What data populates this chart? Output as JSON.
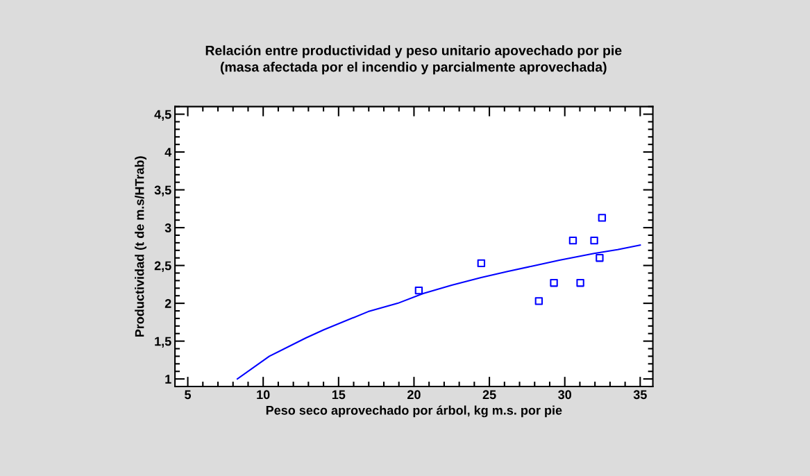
{
  "chart_data": {
    "type": "scatter",
    "title": "Relación entre productividad y peso unitario apovechado por pie\n(masa afectada por el incendio y parcialmente aprovechada)",
    "xlabel": "Peso seco aprovechado por árbol, kg m.s. por pie",
    "ylabel": "Productividad (t de m.s/HTrab)",
    "xlim": [
      4.15,
      35.84
    ],
    "ylim": [
      0.9,
      4.6
    ],
    "xticks": [
      5,
      10,
      15,
      20,
      25,
      30,
      35
    ],
    "yticks": [
      {
        "value": 1,
        "label": "1"
      },
      {
        "value": 1.5,
        "label": "1,5"
      },
      {
        "value": 2,
        "label": "2"
      },
      {
        "value": 2.5,
        "label": "2,5"
      },
      {
        "value": 3,
        "label": "3"
      },
      {
        "value": 3.5,
        "label": "3,5"
      },
      {
        "value": 4,
        "label": "4"
      },
      {
        "value": 4.5,
        "label": "4,5"
      }
    ],
    "series": [
      {
        "color": "#0000ff",
        "marker": "square",
        "x": [
          20.32,
          24.46,
          28.28,
          29.28,
          30.54,
          31.03,
          31.95,
          32.31,
          32.47
        ],
        "values": [
          2.17,
          2.53,
          2.03,
          2.27,
          2.83,
          2.27,
          2.83,
          2.6,
          3.13
        ]
      },
      {
        "type": "line",
        "color": "#0000ff",
        "marker": "none",
        "line_style": "solid",
        "x": [
          8.29,
          10.41,
          12.81,
          14.02,
          16.96,
          18.92,
          20.61,
          22.5,
          24.45,
          26.2,
          27.8,
          29.64,
          31.94,
          33.5,
          35.0
        ],
        "values": [
          1.0,
          1.3,
          1.54,
          1.65,
          1.89,
          2.0,
          2.13,
          2.24,
          2.34,
          2.42,
          2.49,
          2.57,
          2.66,
          2.71,
          2.77
        ]
      }
    ]
  }
}
